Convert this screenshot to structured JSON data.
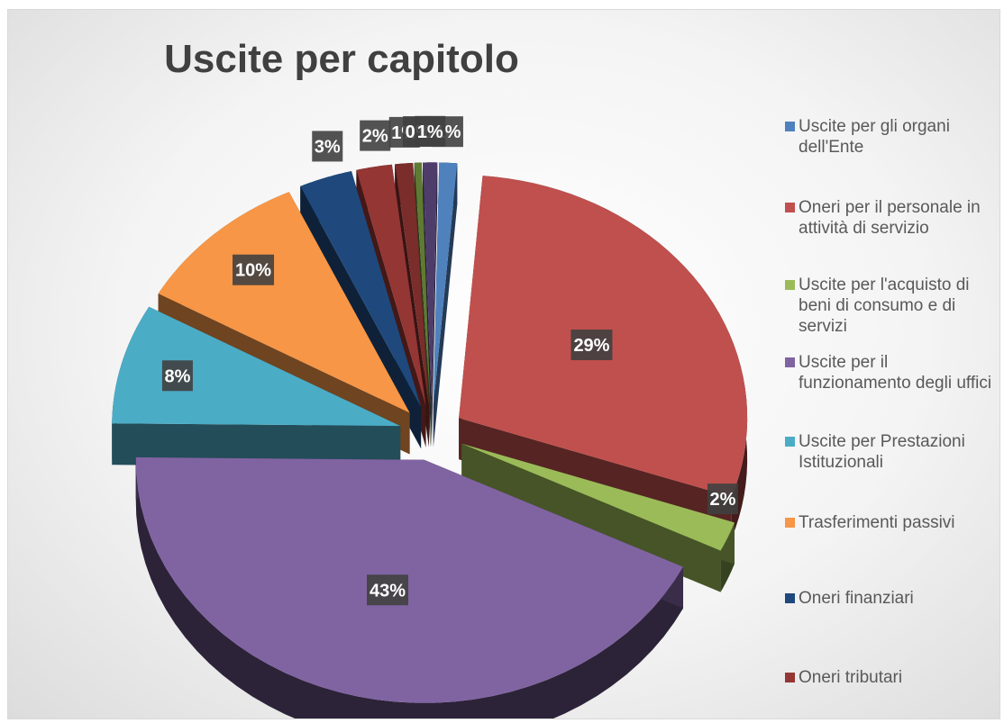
{
  "chart_data": {
    "type": "pie",
    "title": "Uscite per capitolo",
    "legend_position": "right",
    "exploded": true,
    "three_d": true,
    "categories": [
      "Uscite per gli organi dell'Ente",
      "Oneri per il personale in attività di servizio",
      "Uscite per l'acquisto di beni di consumo e di servizi",
      "Uscite per il funzionamento degli uffici",
      "Uscite per Prestazioni Istituzionali",
      "Trasferimenti passivi",
      "Oneri finanziari",
      "Oneri tributari"
    ],
    "values": [
      1,
      29,
      2,
      43,
      8,
      10,
      3,
      2
    ],
    "data_labels": [
      "1%",
      "29%",
      "2%",
      "43%",
      "8%",
      "10%",
      "3%",
      "2%"
    ],
    "extra_slices": [
      {
        "label": "1%",
        "color": "#7a2d2a",
        "value": 1
      },
      {
        "label": "0%",
        "color": "#5f7a32",
        "value": 0.4
      },
      {
        "label": "1%",
        "color": "#4e3d6b",
        "value": 0.8
      }
    ],
    "colors": [
      "#4f81bd",
      "#c0504d",
      "#9bbb59",
      "#8064a2",
      "#4bacc6",
      "#f79646",
      "#1f497d",
      "#943634"
    ]
  }
}
